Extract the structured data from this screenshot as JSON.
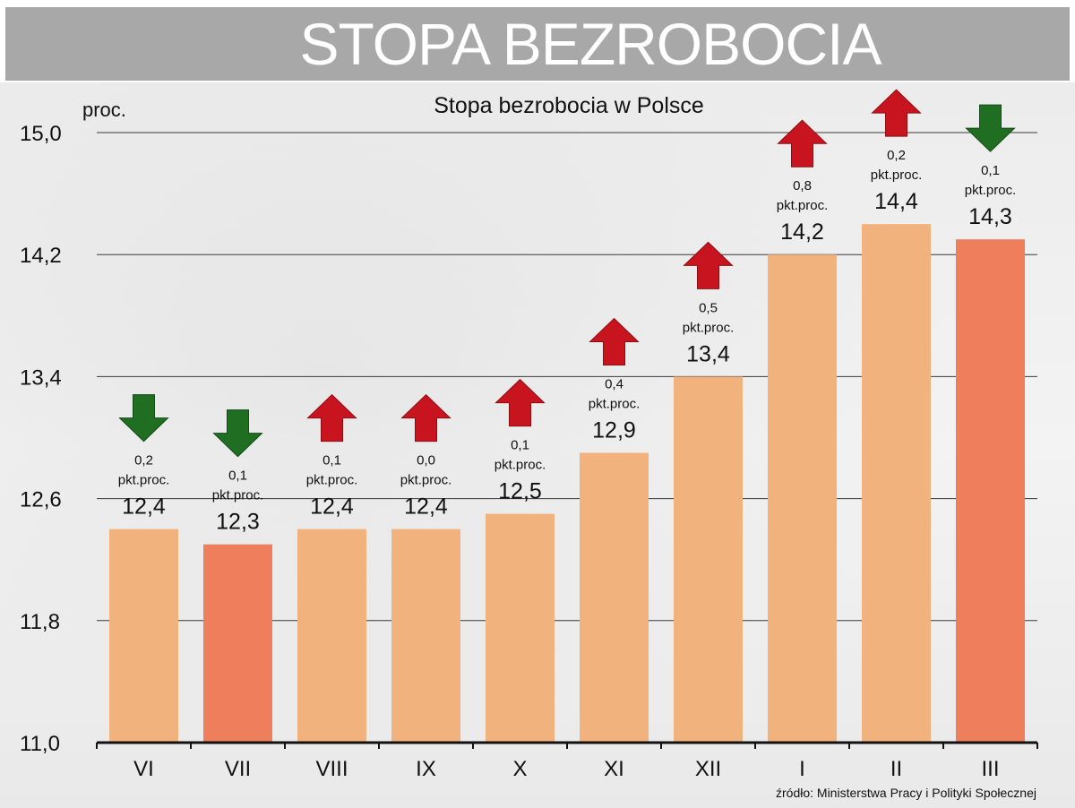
{
  "banner": {
    "title": "STOPA BEZROBOCIA"
  },
  "source_note": "źródło: Ministerstwa Pracy i Polityki Społecznej",
  "colors": {
    "bar": "#f2b27e",
    "bar_highlight": "#ef7f5c",
    "arrow_up": "#c8141e",
    "arrow_down": "#1f6e22",
    "gridline": "#3a3a3a"
  },
  "chart_data": {
    "type": "bar",
    "title": "Stopa bezrobocia w Polsce",
    "ylabel": "proc.",
    "xlabel": "",
    "ylim": [
      11.0,
      15.0
    ],
    "yticks": [
      "11,0",
      "11,8",
      "12,6",
      "13,4",
      "14,2",
      "15,0"
    ],
    "ytick_values": [
      11.0,
      11.8,
      12.6,
      13.4,
      14.2,
      15.0
    ],
    "grid": true,
    "categories": [
      "VI",
      "VII",
      "VIII",
      "IX",
      "X",
      "XI",
      "XII",
      "I",
      "II",
      "III"
    ],
    "values": [
      12.4,
      12.3,
      12.4,
      12.4,
      12.5,
      12.9,
      13.4,
      14.2,
      14.4,
      14.3
    ],
    "value_labels": [
      "12,4",
      "12,3",
      "12,4",
      "12,4",
      "12,5",
      "12,9",
      "13,4",
      "14,2",
      "14,4",
      "14,3"
    ],
    "highlighted": [
      false,
      true,
      false,
      false,
      false,
      false,
      false,
      false,
      false,
      true
    ],
    "changes": [
      {
        "direction": "down",
        "amount": "0,2",
        "unit": "pkt.proc."
      },
      {
        "direction": "down",
        "amount": "0,1",
        "unit": "pkt.proc."
      },
      {
        "direction": "up",
        "amount": "0,1",
        "unit": "pkt.proc."
      },
      {
        "direction": "up",
        "amount": "0,0",
        "unit": "pkt.proc."
      },
      {
        "direction": "up",
        "amount": "0,1",
        "unit": "pkt.proc."
      },
      {
        "direction": "up",
        "amount": "0,4",
        "unit": "pkt.proc."
      },
      {
        "direction": "up",
        "amount": "0,5",
        "unit": "pkt.proc."
      },
      {
        "direction": "up",
        "amount": "0,8",
        "unit": "pkt.proc."
      },
      {
        "direction": "up",
        "amount": "0,2",
        "unit": "pkt.proc."
      },
      {
        "direction": "down",
        "amount": "0,1",
        "unit": "pkt.proc."
      }
    ]
  }
}
